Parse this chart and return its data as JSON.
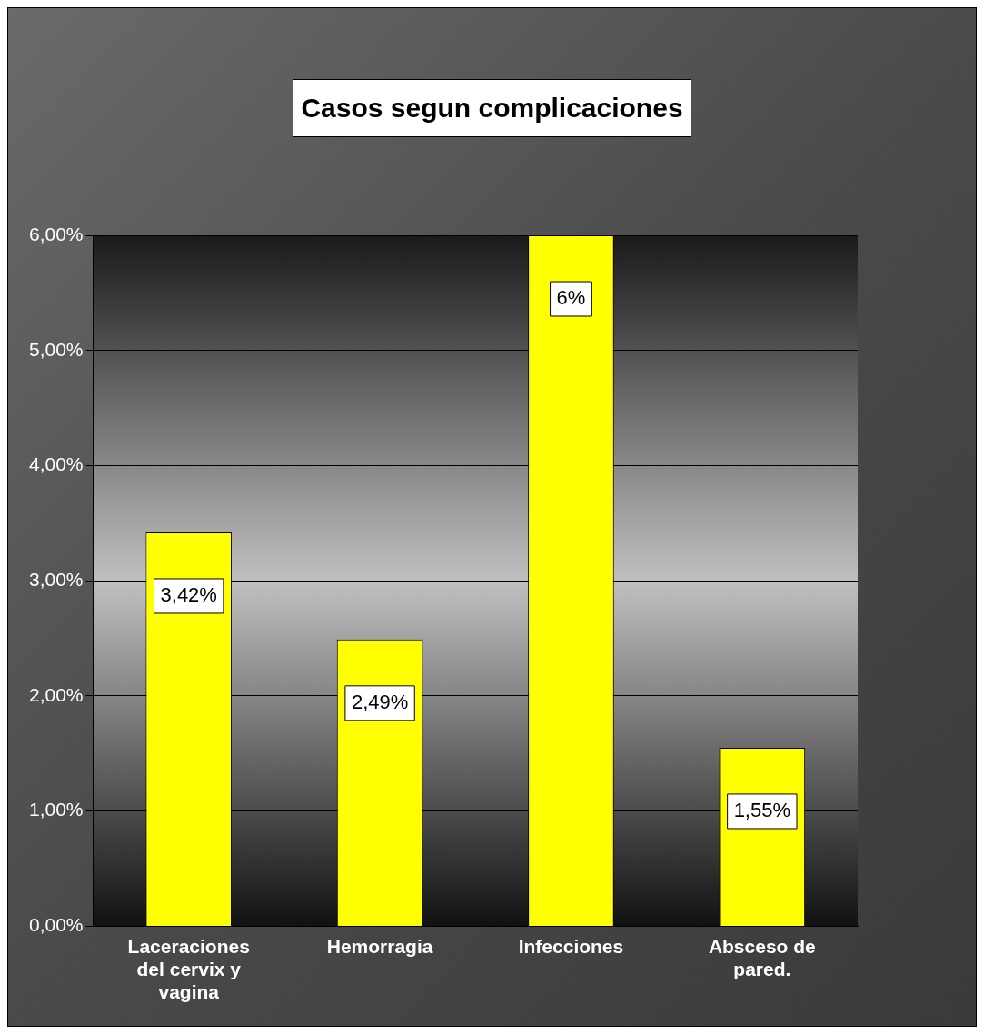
{
  "chart_data": {
    "type": "bar",
    "title": "Casos segun complicaciones",
    "categories": [
      "Laceraciones del cervix y vagina",
      "Hemorragia",
      "Infecciones",
      "Absceso de pared."
    ],
    "values": [
      3.42,
      2.49,
      6,
      1.55
    ],
    "value_labels": [
      "3,42%",
      "2,49%",
      "6%",
      "1,55%"
    ],
    "color": "#ffff00",
    "ylim": [
      0,
      6
    ],
    "yticks": [
      {
        "value": 0,
        "label": "0,00%"
      },
      {
        "value": 1,
        "label": "1,00%"
      },
      {
        "value": 2,
        "label": "2,00%"
      },
      {
        "value": 3,
        "label": "3,00%"
      },
      {
        "value": 4,
        "label": "4,00%"
      },
      {
        "value": 5,
        "label": "5,00%"
      },
      {
        "value": 6,
        "label": "6,00%"
      }
    ],
    "grid": "y",
    "legend": false
  }
}
